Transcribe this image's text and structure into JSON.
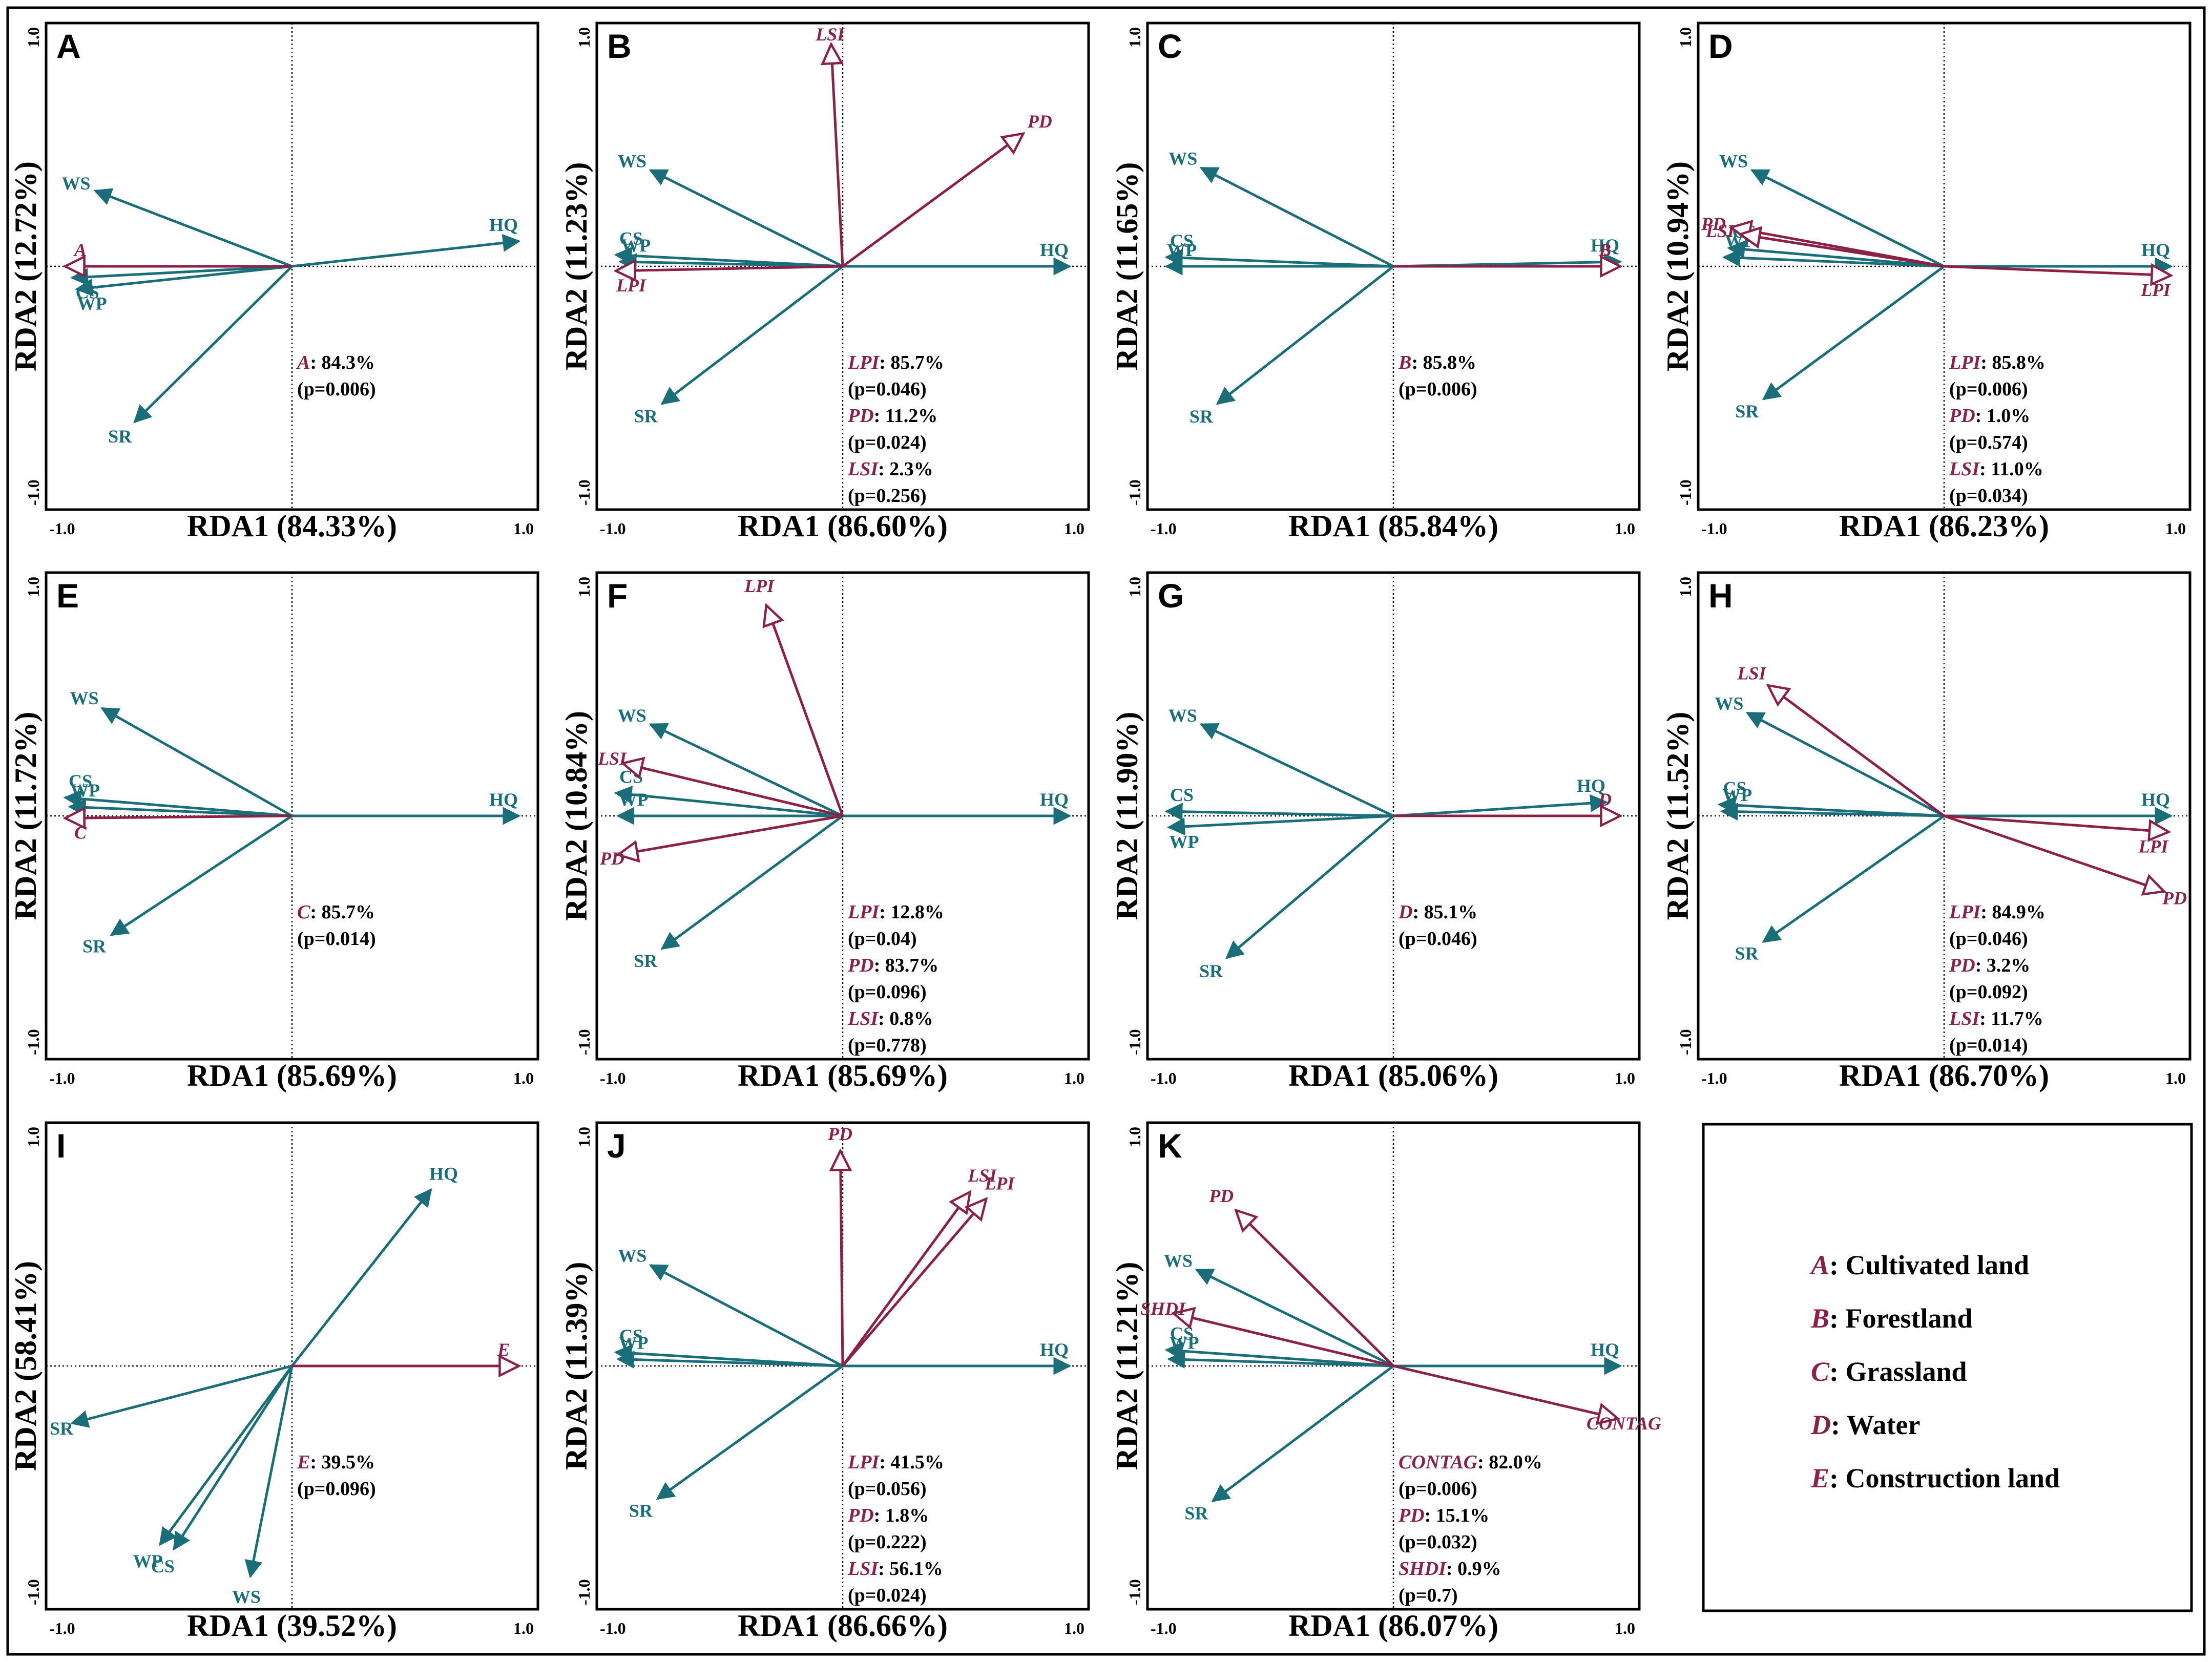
{
  "colors": {
    "response": "#1a6e7a",
    "explanatory": "#8b2146",
    "frame": "#000000"
  },
  "chart_data": [
    {
      "panel": "A",
      "type": "scatter",
      "subtype": "rda-biplot",
      "xlabel": "RDA1 (84.33%)",
      "ylabel": "RDA2 (12.72%)",
      "xlim": [
        -1.0,
        1.0
      ],
      "ylim": [
        -1.0,
        1.0
      ],
      "xticks": [
        "-1.0",
        "1.0"
      ],
      "yticks": [
        "1.0",
        "-1.0"
      ],
      "response": [
        {
          "name": "HQ",
          "x": 0.98,
          "y": 0.11
        },
        {
          "name": "WS",
          "x": -0.85,
          "y": 0.33
        },
        {
          "name": "CS",
          "x": -0.95,
          "y": -0.05
        },
        {
          "name": "WP",
          "x": -0.93,
          "y": -0.1
        },
        {
          "name": "SR",
          "x": -0.68,
          "y": -0.68
        }
      ],
      "explanatory": [
        {
          "name": "A",
          "x": -0.98,
          "y": 0.0
        }
      ],
      "stats": [
        {
          "name": "A",
          "value": ": 84.3%",
          "p": "(p=0.006)"
        }
      ]
    },
    {
      "panel": "B",
      "type": "scatter",
      "subtype": "rda-biplot",
      "xlabel": "RDA1 (86.60%)",
      "ylabel": "RDA2 (11.23%)",
      "xlim": [
        -1.0,
        1.0
      ],
      "ylim": [
        -1.0,
        1.0
      ],
      "xticks": [
        "-1.0",
        "1.0"
      ],
      "yticks": [
        "1.0",
        "-1.0"
      ],
      "response": [
        {
          "name": "HQ",
          "x": 0.98,
          "y": 0.0
        },
        {
          "name": "WS",
          "x": -0.83,
          "y": 0.42
        },
        {
          "name": "CS",
          "x": -0.98,
          "y": 0.05
        },
        {
          "name": "WP",
          "x": -0.96,
          "y": 0.02
        },
        {
          "name": "SR",
          "x": -0.78,
          "y": -0.6
        }
      ],
      "explanatory": [
        {
          "name": "LSI",
          "x": -0.05,
          "y": 0.97
        },
        {
          "name": "PD",
          "x": 0.78,
          "y": 0.58
        },
        {
          "name": "LPI",
          "x": -0.98,
          "y": -0.02
        }
      ],
      "stats": [
        {
          "name": "LPI",
          "value": ": 85.7%",
          "p": "(p=0.046)"
        },
        {
          "name": "PD",
          "value": ": 11.2%",
          "p": "(p=0.024)"
        },
        {
          "name": "LSI",
          "value": ": 2.3%",
          "p": "(p=0.256)"
        }
      ]
    },
    {
      "panel": "C",
      "type": "scatter",
      "subtype": "rda-biplot",
      "xlabel": "RDA1 (85.84%)",
      "ylabel": "RDA2 (11.65%)",
      "xlim": [
        -1.0,
        1.0
      ],
      "ylim": [
        -1.0,
        1.0
      ],
      "xticks": [
        "-1.0",
        "1.0"
      ],
      "yticks": [
        "1.0",
        "-1.0"
      ],
      "response": [
        {
          "name": "HQ",
          "x": 0.98,
          "y": 0.02
        },
        {
          "name": "WS",
          "x": -0.83,
          "y": 0.43
        },
        {
          "name": "CS",
          "x": -0.98,
          "y": 0.04
        },
        {
          "name": "WP",
          "x": -0.98,
          "y": 0.0
        },
        {
          "name": "SR",
          "x": -0.76,
          "y": -0.6
        }
      ],
      "explanatory": [
        {
          "name": "B",
          "x": 0.98,
          "y": 0.0
        }
      ],
      "stats": [
        {
          "name": "B",
          "value": ": 85.8%",
          "p": "(p=0.006)"
        }
      ]
    },
    {
      "panel": "D",
      "type": "scatter",
      "subtype": "rda-biplot",
      "xlabel": "RDA1 (86.23%)",
      "ylabel": "RDA2 (10.94%)",
      "xlim": [
        -1.0,
        1.0
      ],
      "ylim": [
        -1.0,
        1.0
      ],
      "xticks": [
        "-1.0",
        "1.0"
      ],
      "yticks": [
        "1.0",
        "-1.0"
      ],
      "response": [
        {
          "name": "HQ",
          "x": 0.98,
          "y": 0.0
        },
        {
          "name": "WS",
          "x": -0.83,
          "y": 0.42
        },
        {
          "name": "CS",
          "x": -0.93,
          "y": 0.08
        },
        {
          "name": "WP",
          "x": -0.95,
          "y": 0.04
        },
        {
          "name": "SR",
          "x": -0.78,
          "y": -0.58
        }
      ],
      "explanatory": [
        {
          "name": "PD",
          "x": -0.92,
          "y": 0.17
        },
        {
          "name": "LSI",
          "x": -0.88,
          "y": 0.14
        },
        {
          "name": "LPI",
          "x": 0.98,
          "y": -0.04
        }
      ],
      "stats": [
        {
          "name": "LPI",
          "value": ": 85.8%",
          "p": "(p=0.006)"
        },
        {
          "name": "PD",
          "value": ": 1.0%",
          "p": "(p=0.574)"
        },
        {
          "name": "LSI",
          "value": ": 11.0%",
          "p": "(p=0.034)"
        }
      ]
    },
    {
      "panel": "E",
      "type": "scatter",
      "subtype": "rda-biplot",
      "xlabel": "RDA1 (85.69%)",
      "ylabel": "RDA2 (11.72%)",
      "xlim": [
        -1.0,
        1.0
      ],
      "ylim": [
        -1.0,
        1.0
      ],
      "xticks": [
        "-1.0",
        "1.0"
      ],
      "yticks": [
        "1.0",
        "-1.0"
      ],
      "response": [
        {
          "name": "HQ",
          "x": 0.98,
          "y": 0.0
        },
        {
          "name": "WS",
          "x": -0.82,
          "y": 0.47
        },
        {
          "name": "CS",
          "x": -0.98,
          "y": 0.08
        },
        {
          "name": "WP",
          "x": -0.96,
          "y": 0.04
        },
        {
          "name": "SR",
          "x": -0.78,
          "y": -0.52
        }
      ],
      "explanatory": [
        {
          "name": "C",
          "x": -0.98,
          "y": -0.01
        }
      ],
      "stats": [
        {
          "name": "C",
          "value": ": 85.7%",
          "p": "(p=0.014)"
        }
      ]
    },
    {
      "panel": "F",
      "type": "scatter",
      "subtype": "rda-biplot",
      "xlabel": "RDA1 (85.69%)",
      "ylabel": "RDA2 (10.84%)",
      "xlim": [
        -1.0,
        1.0
      ],
      "ylim": [
        -1.0,
        1.0
      ],
      "xticks": [
        "-1.0",
        "1.0"
      ],
      "yticks": [
        "1.0",
        "-1.0"
      ],
      "response": [
        {
          "name": "HQ",
          "x": 0.98,
          "y": 0.0
        },
        {
          "name": "WS",
          "x": -0.83,
          "y": 0.4
        },
        {
          "name": "CS",
          "x": -0.98,
          "y": 0.1
        },
        {
          "name": "WP",
          "x": -0.97,
          "y": 0.0
        },
        {
          "name": "SR",
          "x": -0.78,
          "y": -0.58
        }
      ],
      "explanatory": [
        {
          "name": "LPI",
          "x": -0.33,
          "y": 0.92
        },
        {
          "name": "LSI",
          "x": -0.95,
          "y": 0.23
        },
        {
          "name": "PD",
          "x": -0.97,
          "y": -0.17
        }
      ],
      "stats": [
        {
          "name": "LPI",
          "value": ": 12.8%",
          "p": "(p=0.04)"
        },
        {
          "name": "PD",
          "value": ": 83.7%",
          "p": "(p=0.096)"
        },
        {
          "name": "LSI",
          "value": ": 0.8%",
          "p": "(p=0.778)"
        }
      ]
    },
    {
      "panel": "G",
      "type": "scatter",
      "subtype": "rda-biplot",
      "xlabel": "RDA1 (85.06%)",
      "ylabel": "RDA2 (11.90%)",
      "xlim": [
        -1.0,
        1.0
      ],
      "ylim": [
        -1.0,
        1.0
      ],
      "xticks": [
        "-1.0",
        "1.0"
      ],
      "yticks": [
        "1.0",
        "-1.0"
      ],
      "response": [
        {
          "name": "HQ",
          "x": 0.92,
          "y": 0.06
        },
        {
          "name": "WS",
          "x": -0.83,
          "y": 0.4
        },
        {
          "name": "CS",
          "x": -0.98,
          "y": 0.02
        },
        {
          "name": "WP",
          "x": -0.97,
          "y": -0.05
        },
        {
          "name": "SR",
          "x": -0.72,
          "y": -0.62
        }
      ],
      "explanatory": [
        {
          "name": "D",
          "x": 0.98,
          "y": 0.0
        }
      ],
      "stats": [
        {
          "name": "D",
          "value": ": 85.1%",
          "p": "(p=0.046)"
        }
      ]
    },
    {
      "panel": "H",
      "type": "scatter",
      "subtype": "rda-biplot",
      "xlabel": "RDA1 (86.70%)",
      "ylabel": "RDA2 (11.52%)",
      "xlim": [
        -1.0,
        1.0
      ],
      "ylim": [
        -1.0,
        1.0
      ],
      "xticks": [
        "-1.0",
        "1.0"
      ],
      "yticks": [
        "1.0",
        "-1.0"
      ],
      "response": [
        {
          "name": "HQ",
          "x": 0.98,
          "y": 0.0
        },
        {
          "name": "WS",
          "x": -0.85,
          "y": 0.45
        },
        {
          "name": "CS",
          "x": -0.97,
          "y": 0.05
        },
        {
          "name": "WP",
          "x": -0.96,
          "y": 0.02
        },
        {
          "name": "SR",
          "x": -0.78,
          "y": -0.55
        }
      ],
      "explanatory": [
        {
          "name": "LSI",
          "x": -0.76,
          "y": 0.57
        },
        {
          "name": "LPI",
          "x": 0.97,
          "y": -0.07
        },
        {
          "name": "PD",
          "x": 0.95,
          "y": -0.33
        }
      ],
      "stats": [
        {
          "name": "LPI",
          "value": ": 84.9%",
          "p": "(p=0.046)"
        },
        {
          "name": "PD",
          "value": ": 3.2%",
          "p": "(p=0.092)"
        },
        {
          "name": "LSI",
          "value": ": 11.7%",
          "p": "(p=0.014)"
        }
      ]
    },
    {
      "panel": "I",
      "type": "scatter",
      "subtype": "rda-biplot",
      "xlabel": "RDA1 (39.52%)",
      "ylabel": "RDA2 (58.41%)",
      "xlim": [
        -1.0,
        1.0
      ],
      "ylim": [
        -1.0,
        1.0
      ],
      "xticks": [
        "-1.0",
        "1.0"
      ],
      "yticks": [
        "1.0",
        "-1.0"
      ],
      "response": [
        {
          "name": "HQ",
          "x": 0.6,
          "y": 0.77
        },
        {
          "name": "SR",
          "x": -0.95,
          "y": -0.25
        },
        {
          "name": "WP",
          "x": -0.57,
          "y": -0.78
        },
        {
          "name": "CS",
          "x": -0.51,
          "y": -0.8
        },
        {
          "name": "WS",
          "x": -0.18,
          "y": -0.92
        }
      ],
      "explanatory": [
        {
          "name": "E",
          "x": 0.98,
          "y": 0.0
        }
      ],
      "stats": [
        {
          "name": "E",
          "value": ": 39.5%",
          "p": "(p=0.096)"
        }
      ]
    },
    {
      "panel": "J",
      "type": "scatter",
      "subtype": "rda-biplot",
      "xlabel": "RDA1 (86.66%)",
      "ylabel": "RDA2 (11.39%)",
      "xlim": [
        -1.0,
        1.0
      ],
      "ylim": [
        -1.0,
        1.0
      ],
      "xticks": [
        "-1.0",
        "1.0"
      ],
      "yticks": [
        "1.0",
        "-1.0"
      ],
      "response": [
        {
          "name": "HQ",
          "x": 0.98,
          "y": 0.0
        },
        {
          "name": "WS",
          "x": -0.83,
          "y": 0.44
        },
        {
          "name": "CS",
          "x": -0.98,
          "y": 0.06
        },
        {
          "name": "WP",
          "x": -0.97,
          "y": 0.03
        },
        {
          "name": "SR",
          "x": -0.8,
          "y": -0.58
        }
      ],
      "explanatory": [
        {
          "name": "PD",
          "x": -0.01,
          "y": 0.94
        },
        {
          "name": "LSI",
          "x": 0.55,
          "y": 0.76
        },
        {
          "name": "LPI",
          "x": 0.62,
          "y": 0.73
        }
      ],
      "stats": [
        {
          "name": "LPI",
          "value": ": 41.5%",
          "p": "(p=0.056)"
        },
        {
          "name": "PD",
          "value": ": 1.8%",
          "p": "(p=0.222)"
        },
        {
          "name": "LSI",
          "value": ": 56.1%",
          "p": "(p=0.024)"
        }
      ]
    },
    {
      "panel": "K",
      "type": "scatter",
      "subtype": "rda-biplot",
      "xlabel": "RDA1 (86.07%)",
      "ylabel": "RDA2 (11.21%)",
      "xlim": [
        -1.0,
        1.0
      ],
      "ylim": [
        -1.0,
        1.0
      ],
      "xticks": [
        "-1.0",
        "1.0"
      ],
      "yticks": [
        "1.0",
        "-1.0"
      ],
      "response": [
        {
          "name": "HQ",
          "x": 0.98,
          "y": 0.0
        },
        {
          "name": "WS",
          "x": -0.85,
          "y": 0.42
        },
        {
          "name": "CS",
          "x": -0.98,
          "y": 0.07
        },
        {
          "name": "WP",
          "x": -0.97,
          "y": 0.03
        },
        {
          "name": "SR",
          "x": -0.78,
          "y": -0.59
        }
      ],
      "explanatory": [
        {
          "name": "PD",
          "x": -0.68,
          "y": 0.68
        },
        {
          "name": "SHDI",
          "x": -0.95,
          "y": 0.23
        },
        {
          "name": "CONTAG",
          "x": 0.97,
          "y": -0.23
        }
      ],
      "stats": [
        {
          "name": "CONTAG",
          "value": ": 82.0%",
          "p": "(p=0.006)"
        },
        {
          "name": "PD",
          "value": ": 15.1%",
          "p": "(p=0.032)"
        },
        {
          "name": "SHDI",
          "value": ": 0.9%",
          "p": "(p=0.7)"
        }
      ]
    }
  ],
  "legend": [
    {
      "key": "A",
      "text": ": Cultivated land"
    },
    {
      "key": "B",
      "text": ": Forestland"
    },
    {
      "key": "C",
      "text": ": Grassland"
    },
    {
      "key": "D",
      "text": ": Water"
    },
    {
      "key": "E",
      "text": ": Construction land"
    }
  ]
}
